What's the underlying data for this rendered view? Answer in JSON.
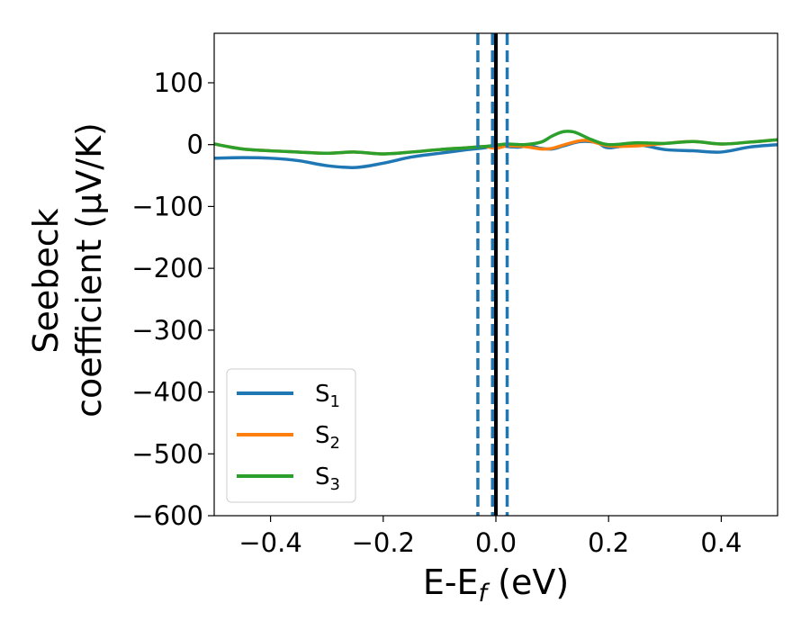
{
  "chart_data": {
    "type": "line",
    "title": "",
    "xlabel": {
      "main": "E-E",
      "sub": "f",
      "unit": " (eV)"
    },
    "ylabel": {
      "line1": "Seebeck",
      "line2": "coefficient  (μV/K)"
    },
    "xlim": [
      -0.5,
      0.5
    ],
    "ylim": [
      -600,
      180
    ],
    "xticks": [
      -0.4,
      -0.2,
      0.0,
      0.2,
      0.4
    ],
    "xtick_labels": [
      "−0.4",
      "−0.2",
      "0.0",
      "0.2",
      "0.4"
    ],
    "yticks": [
      100,
      0,
      -100,
      -200,
      -300,
      -400,
      -500,
      -600
    ],
    "ytick_labels": [
      "100",
      "0",
      "−100",
      "−200",
      "−300",
      "−400",
      "−500",
      "−600"
    ],
    "grid": false,
    "legend_position": "lower-left",
    "vertical_lines": [
      {
        "x": -0.032,
        "style": "dashed",
        "color": "#1f77b4"
      },
      {
        "x": -0.006,
        "style": "dashed",
        "color": "#1f77b4"
      },
      {
        "x": 0.02,
        "style": "dashed",
        "color": "#1f77b4"
      },
      {
        "x": 0.0,
        "style": "solid",
        "color": "#000000"
      }
    ],
    "series": [
      {
        "name": "S",
        "sub": "1",
        "color": "#1f77b4",
        "x": [
          -0.5,
          -0.45,
          -0.4,
          -0.35,
          -0.3,
          -0.25,
          -0.2,
          -0.15,
          -0.1,
          -0.05,
          -0.02,
          0.0,
          0.02,
          0.04,
          0.06,
          0.08,
          0.1,
          0.12,
          0.15,
          0.18,
          0.2,
          0.25,
          0.3,
          0.35,
          0.4,
          0.45,
          0.5
        ],
        "y": [
          -22,
          -21,
          -22,
          -26,
          -34,
          -37,
          -30,
          -20,
          -14,
          -8,
          -5,
          0,
          -3,
          -4,
          -2,
          -6,
          -7,
          -2,
          5,
          3,
          -5,
          0,
          -8,
          -10,
          -12,
          -4,
          0
        ]
      },
      {
        "name": "S",
        "sub": "2",
        "color": "#ff7f0e",
        "x": [
          -0.5,
          -0.45,
          -0.4,
          -0.35,
          -0.3,
          -0.25,
          -0.2,
          -0.15,
          -0.1,
          -0.05,
          -0.02,
          0.0,
          0.02,
          0.05,
          0.08,
          0.1,
          0.13,
          0.16,
          0.2,
          0.25,
          0.3,
          0.35,
          0.4,
          0.45,
          0.5
        ],
        "y": [
          1,
          -7,
          -10,
          -12,
          -14,
          -12,
          -15,
          -12,
          -8,
          -5,
          -3,
          -6,
          -2,
          -3,
          -7,
          -6,
          2,
          7,
          -2,
          -2,
          2,
          5,
          1,
          4,
          8
        ]
      },
      {
        "name": "S",
        "sub": "3",
        "color": "#2ca02c",
        "x": [
          -0.5,
          -0.45,
          -0.4,
          -0.35,
          -0.3,
          -0.25,
          -0.2,
          -0.15,
          -0.1,
          -0.05,
          -0.02,
          0.0,
          0.02,
          0.05,
          0.08,
          0.1,
          0.12,
          0.14,
          0.17,
          0.2,
          0.25,
          0.3,
          0.35,
          0.4,
          0.45,
          0.5
        ],
        "y": [
          1,
          -7,
          -10,
          -12,
          -14,
          -12,
          -15,
          -12,
          -8,
          -5,
          -3,
          -1,
          1,
          0,
          4,
          14,
          21,
          20,
          8,
          0,
          3,
          2,
          5,
          1,
          4,
          8
        ]
      }
    ]
  }
}
